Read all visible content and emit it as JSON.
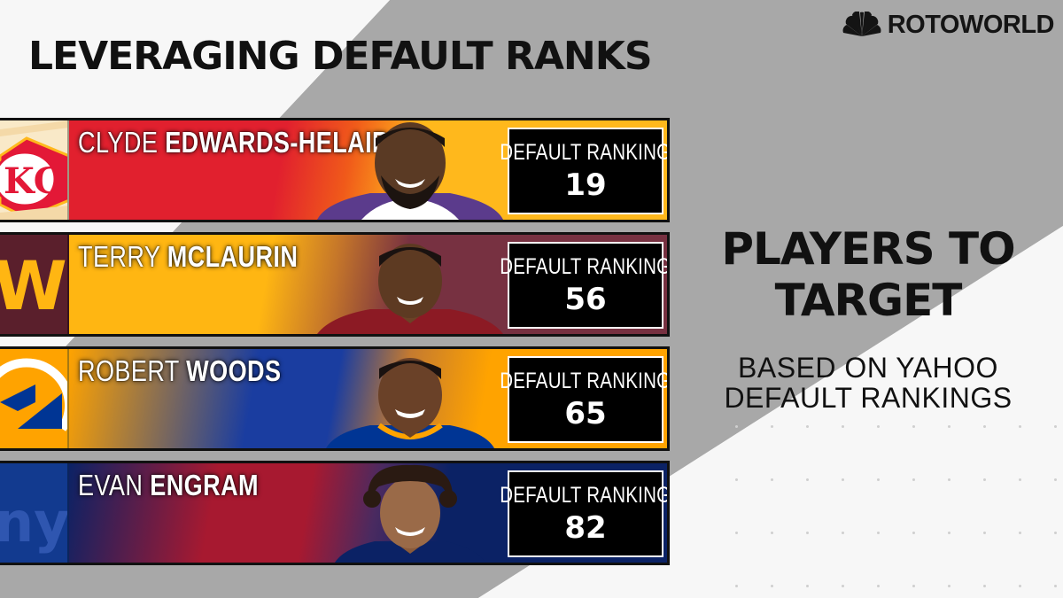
{
  "brand": {
    "logo_text": "ROTOWORLD",
    "logo_icon": "peacock-icon"
  },
  "title": "LEVERAGING DEFAULT RANKS",
  "side": {
    "heading_line1": "PLAYERS TO",
    "heading_line2": "TARGET",
    "sub_line1": "BASED ON YAHOO",
    "sub_line2": "DEFAULT RANKINGS"
  },
  "players": [
    {
      "first": "CLYDE",
      "last": "EDWARDS-HELAIRE",
      "rank_label": "DEFAULT RANKING",
      "rank": "19",
      "team_logo": "chiefs-logo",
      "colors": [
        "#e31837",
        "#ffb81c"
      ]
    },
    {
      "first": "TERRY",
      "last": "MCLAURIN",
      "rank_label": "DEFAULT RANKING",
      "rank": "56",
      "team_logo": "washington-logo",
      "colors": [
        "#ffb612",
        "#773141"
      ]
    },
    {
      "first": "ROBERT",
      "last": "WOODS",
      "rank_label": "DEFAULT RANKING",
      "rank": "65",
      "team_logo": "rams-logo",
      "colors": [
        "#003594",
        "#ffa300"
      ]
    },
    {
      "first": "EVAN",
      "last": "ENGRAM",
      "rank_label": "DEFAULT RANKING",
      "rank": "82",
      "team_logo": "giants-logo",
      "colors": [
        "#a71930",
        "#0b2265"
      ]
    }
  ]
}
